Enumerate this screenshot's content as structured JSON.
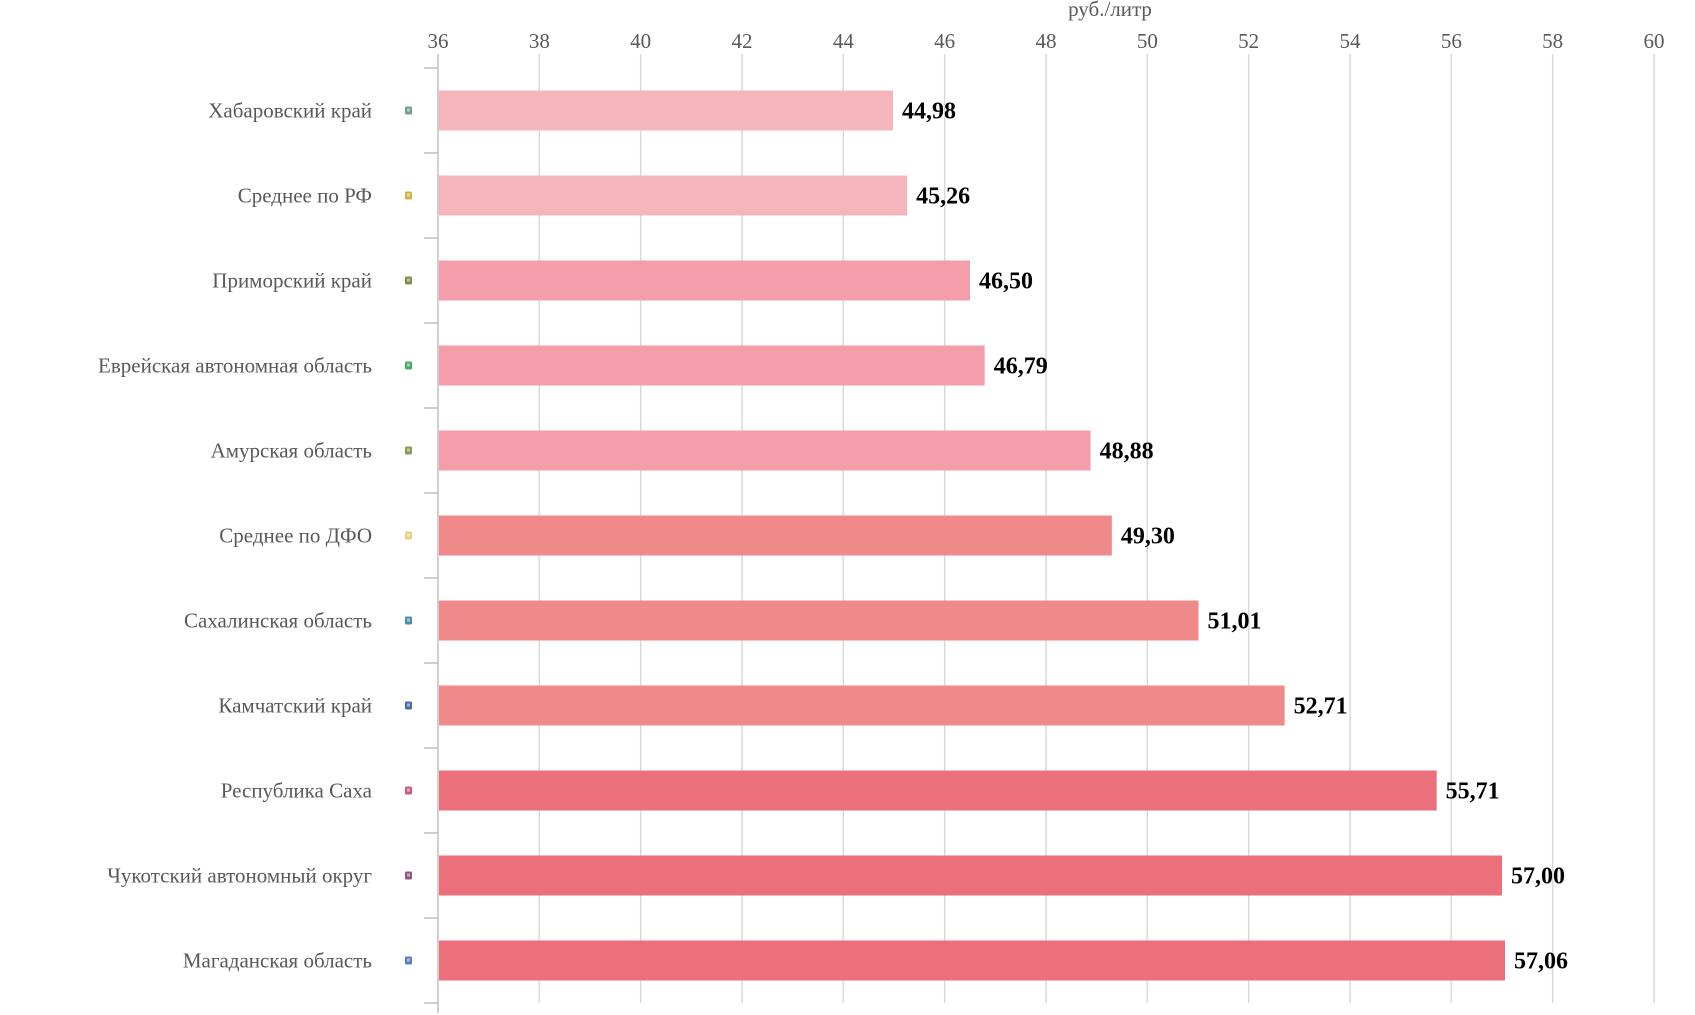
{
  "chart_data": {
    "type": "bar",
    "orientation": "horizontal",
    "title": "",
    "xlabel": "руб./литр",
    "ylabel": "",
    "xlim": [
      36,
      60
    ],
    "x_ticks": [
      "36",
      "38",
      "40",
      "42",
      "44",
      "46",
      "48",
      "50",
      "52",
      "54",
      "56",
      "58",
      "60"
    ],
    "x_axis_position": "top",
    "grid": true,
    "legend": "none",
    "categories": [
      "Хабаровский край",
      "Среднее по РФ",
      "Приморский край",
      "Еврейская автономная область",
      "Амурская область",
      "Среднее по ДФО",
      "Сахалинская область",
      "Камчатский край",
      "Республика Саха",
      "Чукотский автономный округ",
      "Магаданская область"
    ],
    "values": [
      44.98,
      45.26,
      46.5,
      46.79,
      48.88,
      49.3,
      51.01,
      52.71,
      55.71,
      57.0,
      57.06
    ],
    "data_labels": [
      "44,98",
      "45,26",
      "46,50",
      "46,79",
      "48,88",
      "49,30",
      "51,01",
      "52,71",
      "55,71",
      "57,00",
      "57,06"
    ],
    "bar_colors": [
      "#f4b5bb",
      "#f4b5bb",
      "#f49eab",
      "#f49eab",
      "#f49eab",
      "#f08a8a",
      "#f08a8a",
      "#f08a8a",
      "#eb707c",
      "#eb707c",
      "#eb707c"
    ],
    "category_icons": [
      {
        "name": "khabarovsk-coat-of-arms-icon",
        "color": "#5a8f7a"
      },
      {
        "name": "russia-coat-of-arms-icon",
        "color": "#c9a227"
      },
      {
        "name": "primorsky-coat-of-arms-icon",
        "color": "#6b7a2a"
      },
      {
        "name": "jewish-ao-flag-icon",
        "color": "#1e9e4a"
      },
      {
        "name": "amur-coat-of-arms-icon",
        "color": "#6f8a2e"
      },
      {
        "name": "far-east-emblem-icon",
        "color": "#e2c86a"
      },
      {
        "name": "sakhalin-coat-of-arms-icon",
        "color": "#2f7a9a"
      },
      {
        "name": "kamchatka-coat-of-arms-icon",
        "color": "#2a4f9a"
      },
      {
        "name": "sakha-coat-of-arms-icon",
        "color": "#c04060"
      },
      {
        "name": "chukotka-coat-of-arms-icon",
        "color": "#7a3a6a"
      },
      {
        "name": "magadan-coat-of-arms-icon",
        "color": "#3a6ab0"
      }
    ]
  }
}
